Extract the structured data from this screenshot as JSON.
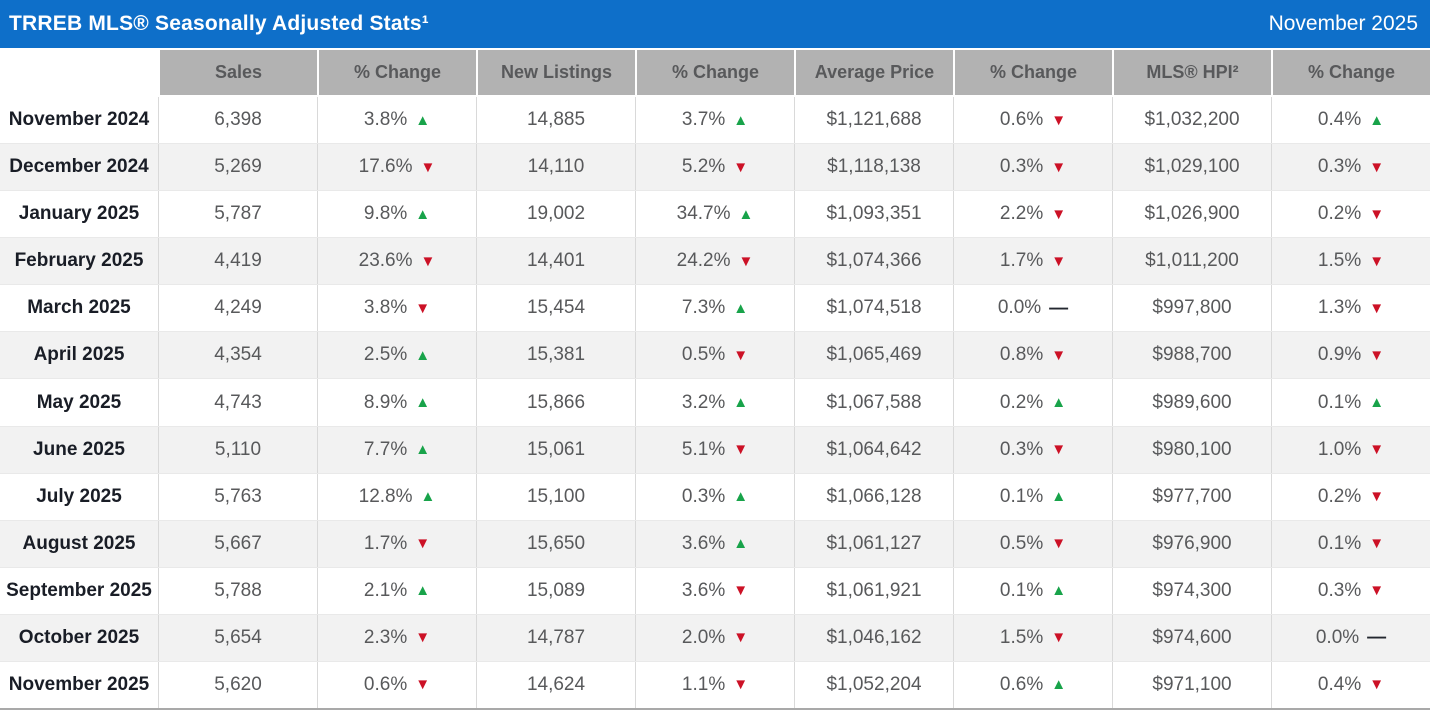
{
  "title_bar": {
    "title": "TRREB MLS® Seasonally Adjusted Stats¹",
    "date": "November 2025",
    "background": "#0e6fc9"
  },
  "table": {
    "columns": [
      "",
      "Sales",
      "% Change",
      "New Listings",
      "% Change",
      "Average Price",
      "% Change",
      "MLS® HPI²",
      "% Change"
    ],
    "rows": [
      {
        "label": "November 2024",
        "sales": "6,398",
        "sales_change": "3.8%",
        "sales_dir": "up",
        "new_listings": "14,885",
        "new_listings_change": "3.7%",
        "new_listings_dir": "up",
        "avg_price": "$1,121,688",
        "avg_price_change": "0.6%",
        "avg_price_dir": "down",
        "hpi": "$1,032,200",
        "hpi_change": "0.4%",
        "hpi_dir": "up"
      },
      {
        "label": "December 2024",
        "sales": "5,269",
        "sales_change": "17.6%",
        "sales_dir": "down",
        "new_listings": "14,110",
        "new_listings_change": "5.2%",
        "new_listings_dir": "down",
        "avg_price": "$1,118,138",
        "avg_price_change": "0.3%",
        "avg_price_dir": "down",
        "hpi": "$1,029,100",
        "hpi_change": "0.3%",
        "hpi_dir": "down"
      },
      {
        "label": "January 2025",
        "sales": "5,787",
        "sales_change": "9.8%",
        "sales_dir": "up",
        "new_listings": "19,002",
        "new_listings_change": "34.7%",
        "new_listings_dir": "up",
        "avg_price": "$1,093,351",
        "avg_price_change": "2.2%",
        "avg_price_dir": "down",
        "hpi": "$1,026,900",
        "hpi_change": "0.2%",
        "hpi_dir": "down"
      },
      {
        "label": "February 2025",
        "sales": "4,419",
        "sales_change": "23.6%",
        "sales_dir": "down",
        "new_listings": "14,401",
        "new_listings_change": "24.2%",
        "new_listings_dir": "down",
        "avg_price": "$1,074,366",
        "avg_price_change": "1.7%",
        "avg_price_dir": "down",
        "hpi": "$1,011,200",
        "hpi_change": "1.5%",
        "hpi_dir": "down"
      },
      {
        "label": "March 2025",
        "sales": "4,249",
        "sales_change": "3.8%",
        "sales_dir": "down",
        "new_listings": "15,454",
        "new_listings_change": "7.3%",
        "new_listings_dir": "up",
        "avg_price": "$1,074,518",
        "avg_price_change": "0.0%",
        "avg_price_dir": "flat",
        "hpi": "$997,800",
        "hpi_change": "1.3%",
        "hpi_dir": "down"
      },
      {
        "label": "April 2025",
        "sales": "4,354",
        "sales_change": "2.5%",
        "sales_dir": "up",
        "new_listings": "15,381",
        "new_listings_change": "0.5%",
        "new_listings_dir": "down",
        "avg_price": "$1,065,469",
        "avg_price_change": "0.8%",
        "avg_price_dir": "down",
        "hpi": "$988,700",
        "hpi_change": "0.9%",
        "hpi_dir": "down"
      },
      {
        "label": "May 2025",
        "sales": "4,743",
        "sales_change": "8.9%",
        "sales_dir": "up",
        "new_listings": "15,866",
        "new_listings_change": "3.2%",
        "new_listings_dir": "up",
        "avg_price": "$1,067,588",
        "avg_price_change": "0.2%",
        "avg_price_dir": "up",
        "hpi": "$989,600",
        "hpi_change": "0.1%",
        "hpi_dir": "up"
      },
      {
        "label": "June 2025",
        "sales": "5,110",
        "sales_change": "7.7%",
        "sales_dir": "up",
        "new_listings": "15,061",
        "new_listings_change": "5.1%",
        "new_listings_dir": "down",
        "avg_price": "$1,064,642",
        "avg_price_change": "0.3%",
        "avg_price_dir": "down",
        "hpi": "$980,100",
        "hpi_change": "1.0%",
        "hpi_dir": "down"
      },
      {
        "label": "July 2025",
        "sales": "5,763",
        "sales_change": "12.8%",
        "sales_dir": "up",
        "new_listings": "15,100",
        "new_listings_change": "0.3%",
        "new_listings_dir": "up",
        "avg_price": "$1,066,128",
        "avg_price_change": "0.1%",
        "avg_price_dir": "up",
        "hpi": "$977,700",
        "hpi_change": "0.2%",
        "hpi_dir": "down"
      },
      {
        "label": "August 2025",
        "sales": "5,667",
        "sales_change": "1.7%",
        "sales_dir": "down",
        "new_listings": "15,650",
        "new_listings_change": "3.6%",
        "new_listings_dir": "up",
        "avg_price": "$1,061,127",
        "avg_price_change": "0.5%",
        "avg_price_dir": "down",
        "hpi": "$976,900",
        "hpi_change": "0.1%",
        "hpi_dir": "down"
      },
      {
        "label": "September 2025",
        "sales": "5,788",
        "sales_change": "2.1%",
        "sales_dir": "up",
        "new_listings": "15,089",
        "new_listings_change": "3.6%",
        "new_listings_dir": "down",
        "avg_price": "$1,061,921",
        "avg_price_change": "0.1%",
        "avg_price_dir": "up",
        "hpi": "$974,300",
        "hpi_change": "0.3%",
        "hpi_dir": "down"
      },
      {
        "label": "October 2025",
        "sales": "5,654",
        "sales_change": "2.3%",
        "sales_dir": "down",
        "new_listings": "14,787",
        "new_listings_change": "2.0%",
        "new_listings_dir": "down",
        "avg_price": "$1,046,162",
        "avg_price_change": "1.5%",
        "avg_price_dir": "down",
        "hpi": "$974,600",
        "hpi_change": "0.0%",
        "hpi_dir": "flat"
      },
      {
        "label": "November 2025",
        "sales": "5,620",
        "sales_change": "0.6%",
        "sales_dir": "down",
        "new_listings": "14,624",
        "new_listings_change": "1.1%",
        "new_listings_dir": "down",
        "avg_price": "$1,052,204",
        "avg_price_change": "0.6%",
        "avg_price_dir": "up",
        "hpi": "$971,100",
        "hpi_change": "0.4%",
        "hpi_dir": "down"
      }
    ]
  },
  "icons": {
    "up": "▲",
    "down": "▼",
    "flat": "—"
  },
  "colors": {
    "up": "#18a34a",
    "down": "#cc1126",
    "flat": "#23272f",
    "header_bg": "#b2b2b2",
    "title_bg": "#0e6fc9"
  }
}
